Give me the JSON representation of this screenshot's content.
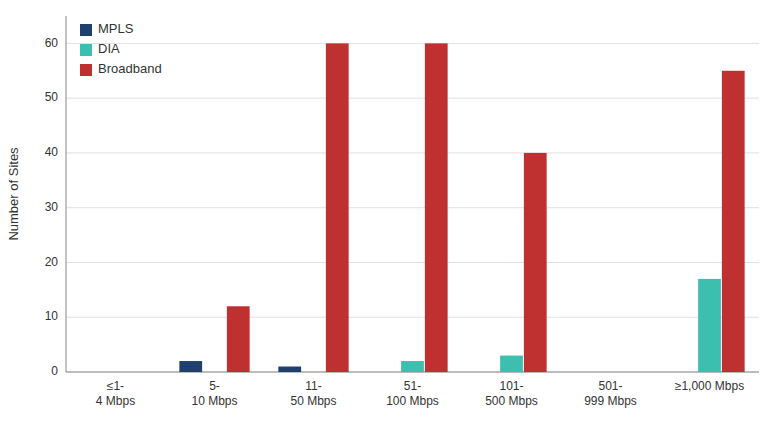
{
  "chart_data": {
    "type": "bar",
    "categories": [
      "≤1-\n4 Mbps",
      "5-\n10 Mbps",
      "11-\n50 Mbps",
      "51-\n100 Mbps",
      "101-\n500 Mbps",
      "501-\n999 Mbps",
      "≥1,000 Mbps"
    ],
    "series": [
      {
        "name": "MPLS",
        "color": "#1f3f6e",
        "values": [
          0,
          2,
          1,
          0,
          0,
          0,
          0
        ]
      },
      {
        "name": "DIA",
        "color": "#3dbfb0",
        "values": [
          0,
          0,
          0,
          2,
          3,
          0,
          17
        ]
      },
      {
        "name": "Broadband",
        "color": "#bf3030",
        "values": [
          0,
          12,
          60,
          60,
          40,
          0,
          55
        ]
      }
    ],
    "y_label": "Number of Sites",
    "ylim": [
      0,
      65
    ],
    "yticks": [
      0,
      10,
      20,
      30,
      40,
      50,
      60
    ],
    "grid": true,
    "legend": "upper left"
  }
}
